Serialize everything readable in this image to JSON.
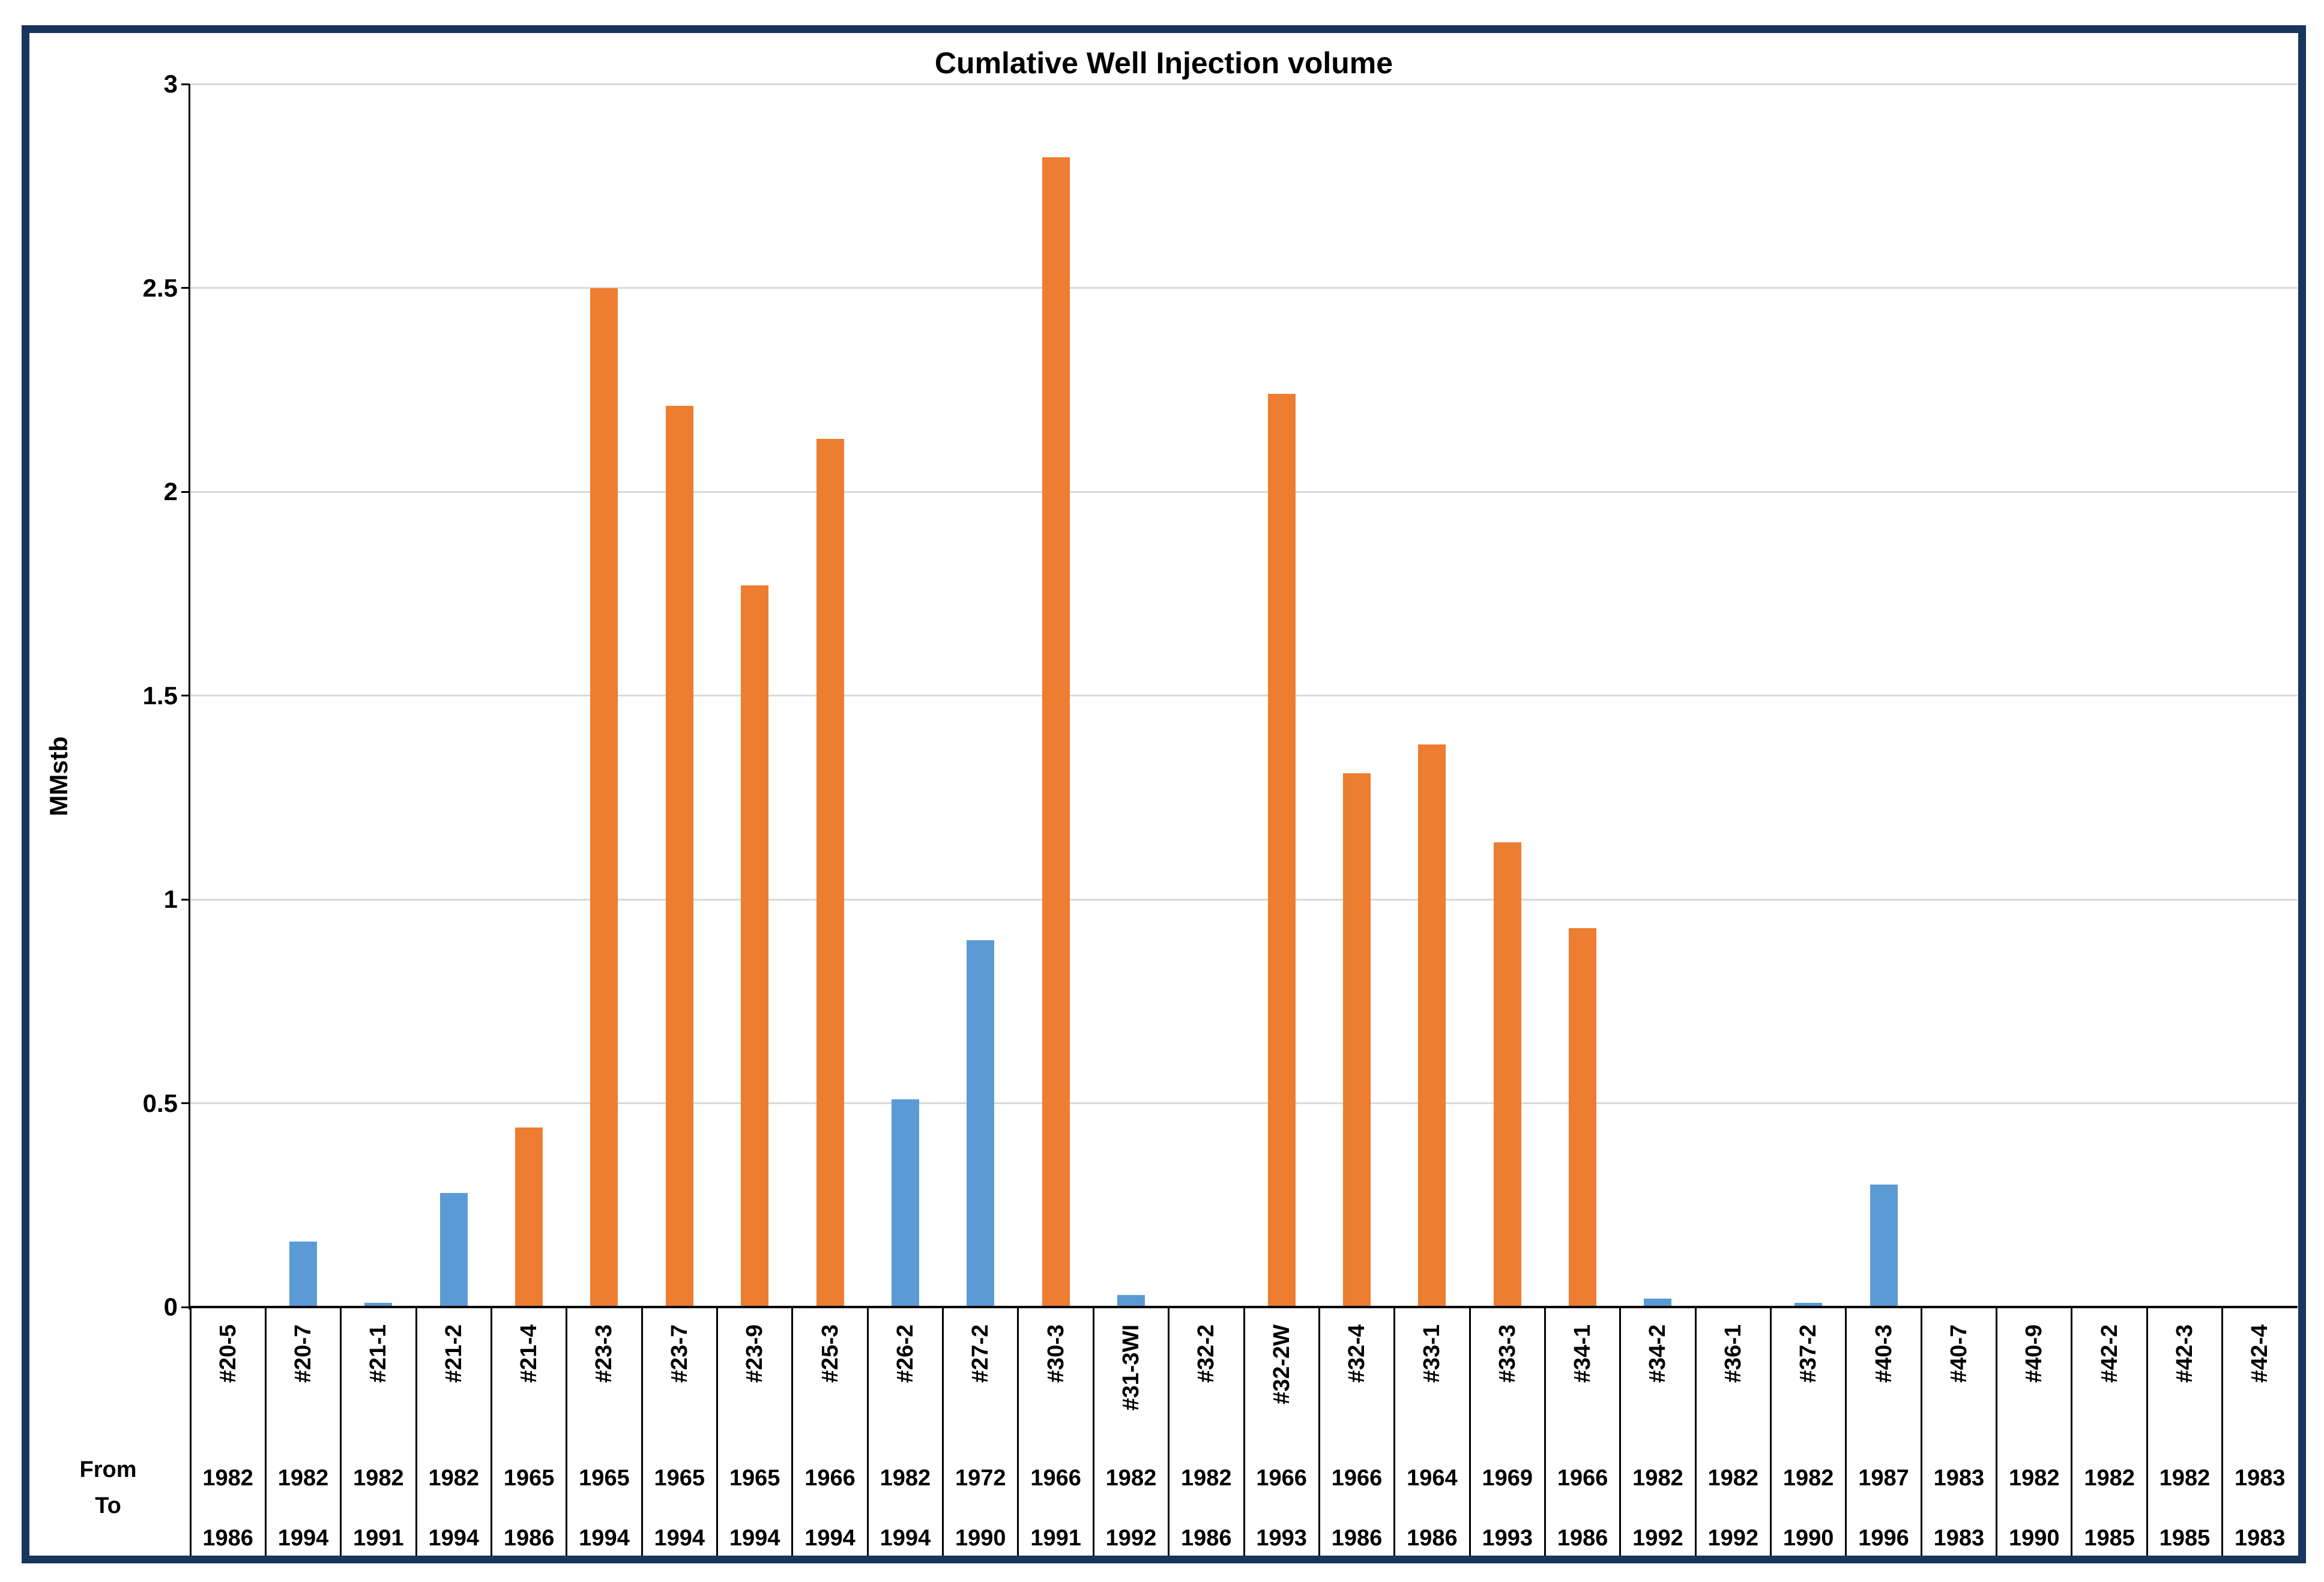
{
  "title": "Cumlative Well Injection volume",
  "chart_data": {
    "type": "bar",
    "title": "Cumlative Well Injection volume",
    "xlabel": "",
    "ylabel": "MMstb",
    "ylim": [
      0,
      3
    ],
    "ytick_interval": 0.5,
    "yticks": [
      3,
      2.5,
      2,
      1.5,
      1,
      0.5,
      0
    ],
    "grid": "horizontal-major",
    "legend": "none",
    "row_headers": {
      "from": "From",
      "to": "To"
    },
    "series_colors": {
      "blue": "#5B9BD5",
      "orange": "#ED7D31"
    },
    "frame_color": "#17365D",
    "gridline_color": "#D9D9D9",
    "categories": [
      "#20-5",
      "#20-7",
      "#21-1",
      "#21-2",
      "#21-4",
      "#23-3",
      "#23-7",
      "#23-9",
      "#25-3",
      "#26-2",
      "#27-2",
      "#30-3",
      "#31-3WI",
      "#32-2",
      "#32-2W",
      "#32-4",
      "#33-1",
      "#33-3",
      "#34-1",
      "#34-2",
      "#36-1",
      "#37-2",
      "#40-3",
      "#40-7",
      "#40-9",
      "#42-2",
      "#42-3",
      "#42-4"
    ],
    "wells": [
      {
        "name": "#20-5",
        "from": "1982",
        "to": "1986",
        "value": 0,
        "color": "blue"
      },
      {
        "name": "#20-7",
        "from": "1982",
        "to": "1994",
        "value": 0.16,
        "color": "blue"
      },
      {
        "name": "#21-1",
        "from": "1982",
        "to": "1991",
        "value": 0.01,
        "color": "blue"
      },
      {
        "name": "#21-2",
        "from": "1982",
        "to": "1994",
        "value": 0.28,
        "color": "blue"
      },
      {
        "name": "#21-4",
        "from": "1965",
        "to": "1986",
        "value": 0.44,
        "color": "orange"
      },
      {
        "name": "#23-3",
        "from": "1965",
        "to": "1994",
        "value": 2.5,
        "color": "orange"
      },
      {
        "name": "#23-7",
        "from": "1965",
        "to": "1994",
        "value": 2.21,
        "color": "orange"
      },
      {
        "name": "#23-9",
        "from": "1965",
        "to": "1994",
        "value": 1.77,
        "color": "orange"
      },
      {
        "name": "#25-3",
        "from": "1966",
        "to": "1994",
        "value": 2.13,
        "color": "orange"
      },
      {
        "name": "#26-2",
        "from": "1982",
        "to": "1994",
        "value": 0.51,
        "color": "blue"
      },
      {
        "name": "#27-2",
        "from": "1972",
        "to": "1990",
        "value": 0.9,
        "color": "blue"
      },
      {
        "name": "#30-3",
        "from": "1966",
        "to": "1991",
        "value": 2.82,
        "color": "orange"
      },
      {
        "name": "#31-3WI",
        "from": "1982",
        "to": "1992",
        "value": 0.03,
        "color": "blue"
      },
      {
        "name": "#32-2",
        "from": "1982",
        "to": "1986",
        "value": 0,
        "color": "blue"
      },
      {
        "name": "#32-2W",
        "from": "1966",
        "to": "1993",
        "value": 2.24,
        "color": "orange"
      },
      {
        "name": "#32-4",
        "from": "1966",
        "to": "1986",
        "value": 1.31,
        "color": "orange"
      },
      {
        "name": "#33-1",
        "from": "1964",
        "to": "1986",
        "value": 1.38,
        "color": "orange"
      },
      {
        "name": "#33-3",
        "from": "1969",
        "to": "1993",
        "value": 1.14,
        "color": "orange"
      },
      {
        "name": "#34-1",
        "from": "1966",
        "to": "1986",
        "value": 0.93,
        "color": "orange"
      },
      {
        "name": "#34-2",
        "from": "1982",
        "to": "1992",
        "value": 0.02,
        "color": "blue"
      },
      {
        "name": "#36-1",
        "from": "1982",
        "to": "1992",
        "value": 0,
        "color": "blue"
      },
      {
        "name": "#37-2",
        "from": "1982",
        "to": "1990",
        "value": 0.01,
        "color": "blue"
      },
      {
        "name": "#40-3",
        "from": "1987",
        "to": "1996",
        "value": 0.3,
        "color": "blue"
      },
      {
        "name": "#40-7",
        "from": "1983",
        "to": "1983",
        "value": 0,
        "color": "blue"
      },
      {
        "name": "#40-9",
        "from": "1982",
        "to": "1990",
        "value": 0,
        "color": "blue"
      },
      {
        "name": "#42-2",
        "from": "1982",
        "to": "1985",
        "value": 0,
        "color": "blue"
      },
      {
        "name": "#42-3",
        "from": "1982",
        "to": "1985",
        "value": 0,
        "color": "blue"
      },
      {
        "name": "#42-4",
        "from": "1983",
        "to": "1983",
        "value": 0,
        "color": "blue"
      }
    ]
  }
}
